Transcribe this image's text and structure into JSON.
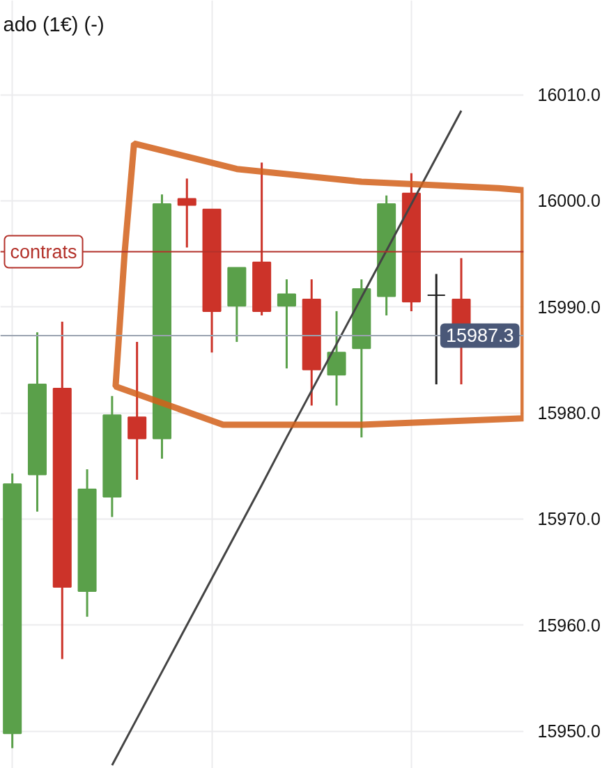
{
  "chart_data": {
    "type": "candlestick",
    "title": "ado (1€) (-)",
    "categories": [
      null,
      null,
      null,
      null,
      null,
      null,
      null,
      null,
      null,
      null,
      null,
      null,
      null,
      null,
      null,
      null,
      null,
      null,
      null
    ],
    "ohlc": [
      [
        15949.8,
        15974.3,
        15948.4,
        15973.3
      ],
      [
        15974.2,
        15987.6,
        15970.7,
        15982.7
      ],
      [
        15982.3,
        15988.6,
        15956.8,
        15963.6
      ],
      [
        15963.2,
        15974.7,
        15960.8,
        15972.8
      ],
      [
        15972.1,
        15981.6,
        15970.2,
        15979.8
      ],
      [
        15979.6,
        15986.7,
        15973.7,
        15977.6
      ],
      [
        15977.6,
        16000.6,
        15975.7,
        15999.7
      ],
      [
        16000.2,
        16002.1,
        15995.6,
        15999.6
      ],
      [
        15999.2,
        15999.2,
        15985.7,
        15989.6
      ],
      [
        15990.1,
        15993.7,
        15986.7,
        15993.7
      ],
      [
        15994.2,
        16003.6,
        15989.2,
        15989.6
      ],
      [
        15990.1,
        15992.6,
        15984.2,
        15991.2
      ],
      [
        15990.7,
        15992.6,
        15980.7,
        15984.1
      ],
      [
        15983.6,
        15989.6,
        15980.7,
        15985.7
      ],
      [
        15986.1,
        15992.6,
        15977.7,
        15991.7
      ],
      [
        15991.0,
        16000.5,
        15989.2,
        15999.7
      ],
      [
        16000.7,
        16002.6,
        15989.6,
        15990.5
      ],
      [
        15991.1,
        15993.1,
        15982.7,
        15991.1
      ],
      [
        15990.7,
        15994.6,
        15982.7,
        15987.3
      ]
    ],
    "colors": [
      "#5aa04a",
      "#5aa04a",
      "#cc3329",
      "#5aa04a",
      "#5aa04a",
      "#cc3329",
      "#5aa04a",
      "#cc3329",
      "#cc3329",
      "#5aa04a",
      "#cc3329",
      "#5aa04a",
      "#cc3329",
      "#5aa04a",
      "#5aa04a",
      "#5aa04a",
      "#cc3329",
      "#222222",
      "#cc3329"
    ],
    "series": [
      {
        "type": "line",
        "values": [
          null,
          null,
          null,
          null,
          15946.8,
          15951.2,
          15955.6,
          15960.0,
          15964.4,
          15968.8,
          15973.2,
          15977.7,
          15982.1,
          15986.5,
          15990.9,
          15995.3,
          15999.7,
          16004.1,
          16008.5
        ],
        "color": "#444444"
      }
    ],
    "ylim": [
      15946.5,
      16018.9
    ],
    "yticks": [
      {
        "value": 15950,
        "label": "15950.0"
      },
      {
        "value": 15960,
        "label": "15960.0"
      },
      {
        "value": 15970,
        "label": "15970.0"
      },
      {
        "value": 15980,
        "label": "15980.0"
      },
      {
        "value": 15990,
        "label": "15990.0"
      },
      {
        "value": 16000,
        "label": "16000.0"
      },
      {
        "value": 16010,
        "label": "16010.0"
      }
    ],
    "ref_lines": [
      {
        "axis": "y",
        "value": 15995.2,
        "label": "contrats",
        "color": "#b3312a"
      },
      {
        "axis": "y",
        "value": 15987.3,
        "label": "15987.3",
        "color": "#9aa3b0"
      }
    ],
    "grid": true,
    "tick_labels": "y"
  }
}
